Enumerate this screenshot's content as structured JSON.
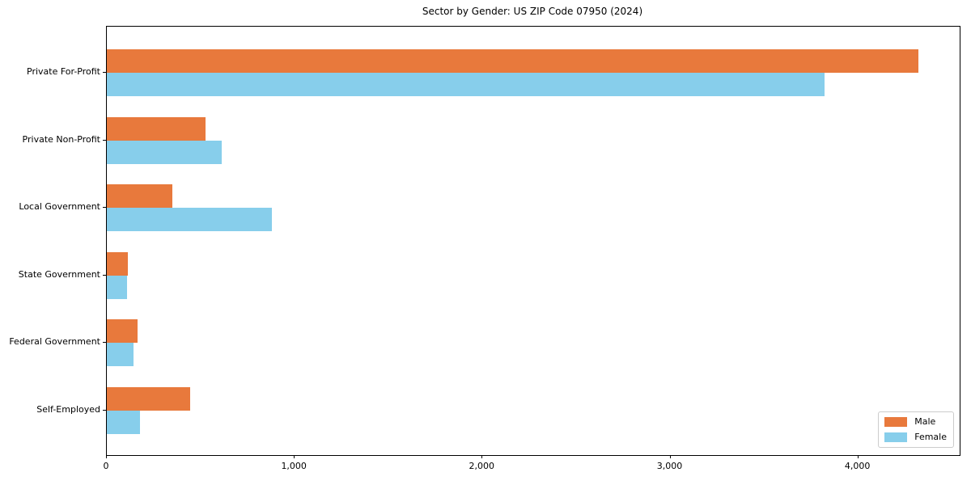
{
  "title": "Sector by Gender: US ZIP Code 07950 (2024)",
  "legend": {
    "items": [
      {
        "label": "Male",
        "color": "#e8793c"
      },
      {
        "label": "Female",
        "color": "#87ceeb"
      }
    ]
  },
  "chart_data": {
    "type": "bar",
    "orientation": "horizontal",
    "title": "Sector by Gender: US ZIP Code 07950 (2024)",
    "categories": [
      "Private For-Profit",
      "Private Non-Profit",
      "Local Government",
      "State Government",
      "Federal Government",
      "Self-Employed"
    ],
    "series": [
      {
        "name": "Male",
        "color": "#e8793c",
        "values": [
          4320,
          525,
          350,
          112,
          165,
          445
        ]
      },
      {
        "name": "Female",
        "color": "#87ceeb",
        "values": [
          3820,
          610,
          880,
          108,
          140,
          175
        ]
      }
    ],
    "xlabel": "",
    "ylabel": "",
    "xlim": [
      0,
      4540
    ],
    "xticks": [
      0,
      1000,
      2000,
      3000,
      4000
    ],
    "xtick_labels": [
      "0",
      "1,000",
      "2,000",
      "3,000",
      "4,000"
    ],
    "grid": false,
    "legend_position": "lower right"
  }
}
